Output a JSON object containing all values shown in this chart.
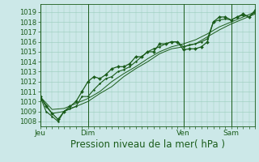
{
  "background_color": "#cce8e8",
  "grid_color": "#99ccbb",
  "line_color": "#1a5c1a",
  "marker_color": "#1a5c1a",
  "xlabel": "Pression niveau de la mer( hPa )",
  "xlabel_fontsize": 8.5,
  "ylim": [
    1007.5,
    1019.8
  ],
  "yticks": [
    1008,
    1009,
    1010,
    1011,
    1012,
    1013,
    1014,
    1015,
    1016,
    1017,
    1018,
    1019
  ],
  "ytick_fontsize": 6.0,
  "xtick_labels": [
    "Jeu",
    "Dim",
    "Ven",
    "Sam"
  ],
  "xtick_positions": [
    0,
    24,
    72,
    96
  ],
  "xtick_fontsize": 6.5,
  "total_hours": 108,
  "series1_x": [
    0,
    3,
    6,
    9,
    12,
    15,
    18,
    21,
    24,
    27,
    30,
    33,
    36,
    39,
    42,
    45,
    48,
    51,
    54,
    57,
    60,
    63,
    66,
    69,
    72,
    75,
    78,
    81,
    84,
    87,
    90,
    93,
    96,
    99,
    102,
    105,
    108
  ],
  "series1_y": [
    1010.5,
    1009.5,
    1008.8,
    1008.2,
    1009.0,
    1009.5,
    1010.0,
    1011.0,
    1012.0,
    1012.5,
    1012.3,
    1012.7,
    1013.3,
    1013.5,
    1013.5,
    1013.8,
    1014.5,
    1014.5,
    1015.0,
    1015.0,
    1015.8,
    1015.8,
    1016.0,
    1016.0,
    1015.2,
    1015.3,
    1015.3,
    1015.5,
    1016.0,
    1018.0,
    1018.5,
    1018.5,
    1018.2,
    1018.5,
    1018.8,
    1018.5,
    1019.0
  ],
  "series2_x": [
    0,
    3,
    6,
    9,
    12,
    15,
    18,
    21,
    24,
    27,
    30,
    33,
    36,
    39,
    42,
    45,
    48,
    51,
    54,
    57,
    60,
    63,
    66,
    69,
    72,
    75,
    78,
    81,
    84,
    87,
    90,
    93,
    96,
    99,
    102,
    105,
    108
  ],
  "series2_y": [
    1010.5,
    1009.0,
    1008.5,
    1008.0,
    1009.0,
    1009.3,
    1009.5,
    1010.5,
    1010.5,
    1011.2,
    1011.8,
    1012.3,
    1012.5,
    1013.0,
    1013.2,
    1013.5,
    1014.0,
    1014.5,
    1015.0,
    1015.3,
    1015.5,
    1015.8,
    1016.0,
    1016.0,
    1015.5,
    1015.7,
    1015.8,
    1016.0,
    1016.3,
    1018.0,
    1018.2,
    1018.3,
    1018.2,
    1018.5,
    1018.7,
    1018.5,
    1019.2
  ],
  "series3_x": [
    0,
    6,
    12,
    18,
    24,
    30,
    36,
    42,
    48,
    54,
    60,
    66,
    72,
    78,
    84,
    90,
    96,
    102,
    108
  ],
  "series3_y": [
    1010.5,
    1009.2,
    1009.3,
    1009.8,
    1010.3,
    1011.0,
    1012.0,
    1012.8,
    1013.5,
    1014.3,
    1015.0,
    1015.5,
    1015.8,
    1016.2,
    1016.8,
    1017.5,
    1018.0,
    1018.5,
    1019.0
  ],
  "series4_x": [
    0,
    6,
    12,
    18,
    24,
    30,
    36,
    42,
    48,
    54,
    60,
    66,
    72,
    78,
    84,
    90,
    96,
    102,
    108
  ],
  "series4_y": [
    1010.5,
    1008.8,
    1009.0,
    1009.5,
    1010.0,
    1010.8,
    1011.5,
    1012.5,
    1013.3,
    1014.0,
    1014.8,
    1015.3,
    1015.5,
    1015.8,
    1016.5,
    1017.2,
    1017.8,
    1018.3,
    1018.8
  ]
}
